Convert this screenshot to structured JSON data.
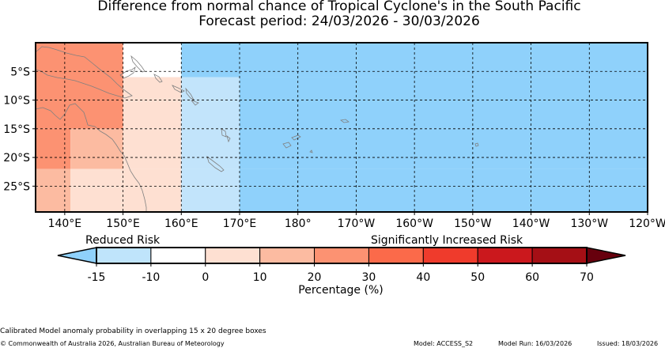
{
  "title": "Difference from normal chance of Tropical Cyclone's in the South Pacific",
  "subtitle": "Forecast period: 24/03/2026 - 30/03/2026",
  "map": {
    "lat_labels": [
      "5°S",
      "10°S",
      "15°S",
      "20°S",
      "25°S"
    ],
    "lon_labels": [
      "140°E",
      "150°E",
      "160°E",
      "170°E",
      "180°",
      "170°W",
      "160°W",
      "150°W",
      "140°W",
      "130°W",
      "120°W"
    ],
    "lon_range": [
      135,
      240
    ],
    "lat_range": [
      0,
      -29.5
    ],
    "gridlines": "dashed",
    "land_outline_color": "#808080",
    "cells": [
      {
        "lon": [
          135,
          150
        ],
        "lat": [
          0,
          -15
        ],
        "bin": "20-30"
      },
      {
        "lon": [
          150,
          160
        ],
        "lat": [
          0,
          -6
        ],
        "bin": "-10-0"
      },
      {
        "lon": [
          160,
          240
        ],
        "lat": [
          0,
          -6
        ],
        "bin": "-15--10"
      },
      {
        "lon": [
          150,
          160
        ],
        "lat": [
          -6,
          -15
        ],
        "bin": "0-10"
      },
      {
        "lon": [
          160,
          170
        ],
        "lat": [
          -6,
          -15
        ],
        "bin": "-10-0-light-blue"
      },
      {
        "lon": [
          170,
          240
        ],
        "lat": [
          -6,
          -15
        ],
        "bin": "-15--10"
      },
      {
        "lon": [
          135,
          141
        ],
        "lat": [
          -15,
          -22
        ],
        "bin": "20-30"
      },
      {
        "lon": [
          141,
          150
        ],
        "lat": [
          -15,
          -22
        ],
        "bin": "10-20"
      },
      {
        "lon": [
          150,
          160
        ],
        "lat": [
          -15,
          -22
        ],
        "bin": "0-10"
      },
      {
        "lon": [
          160,
          170
        ],
        "lat": [
          -15,
          -22
        ],
        "bin": "-10-0-light-blue"
      },
      {
        "lon": [
          170,
          240
        ],
        "lat": [
          -15,
          -22
        ],
        "bin": "-15--10"
      },
      {
        "lon": [
          135,
          141
        ],
        "lat": [
          -22,
          -29.5
        ],
        "bin": "10-20"
      },
      {
        "lon": [
          141,
          160
        ],
        "lat": [
          -22,
          -29.5
        ],
        "bin": "0-10"
      },
      {
        "lon": [
          160,
          170
        ],
        "lat": [
          -22,
          -29.5
        ],
        "bin": "-10-0-light-blue"
      },
      {
        "lon": [
          170,
          240
        ],
        "lat": [
          -22,
          -29.5
        ],
        "bin": "-15--10"
      }
    ]
  },
  "legend": {
    "reduced_label": "Reduced Risk",
    "increased_label": "Significantly Increased Risk",
    "xlabel": "Percentage (%)",
    "ticks": [
      "-15",
      "-10",
      "0",
      "10",
      "20",
      "30",
      "40",
      "50",
      "60",
      "70"
    ],
    "low_extension_color": "#8fd1fb",
    "high_extension_color": "#67000d",
    "bins": [
      {
        "from": -15,
        "to": -10,
        "color": "#bfe4fb"
      },
      {
        "from": -10,
        "to": 0,
        "color": "#ffffff"
      },
      {
        "from": 0,
        "to": 10,
        "color": "#fee0d2"
      },
      {
        "from": 10,
        "to": 20,
        "color": "#fcbba1"
      },
      {
        "from": 20,
        "to": 30,
        "color": "#fc9272"
      },
      {
        "from": 30,
        "to": 40,
        "color": "#fb6a4a"
      },
      {
        "from": 40,
        "to": 50,
        "color": "#ef3b2c"
      },
      {
        "from": 50,
        "to": 60,
        "color": "#cb181d"
      },
      {
        "from": 60,
        "to": 70,
        "color": "#a50f15"
      }
    ]
  },
  "colors": {
    "20-30": "#fc9272",
    "10-20": "#fcbba1",
    "0-10": "#fee0d2",
    "-10-0": "#ffffff",
    "-10-0-light-blue": "#c2e4fb",
    "-15--10": "#8fd1fb"
  },
  "footer": {
    "note": "Calibrated Model anomaly probability in overlapping 15 x 20 degree boxes",
    "copyright": "© Commonwealth of Australia 2026, Australian Bureau of Meteorology",
    "model": "Model: ACCESS_S2",
    "model_run": "Model Run: 16/03/2026",
    "issued": "Issued: 18/03/2026"
  }
}
